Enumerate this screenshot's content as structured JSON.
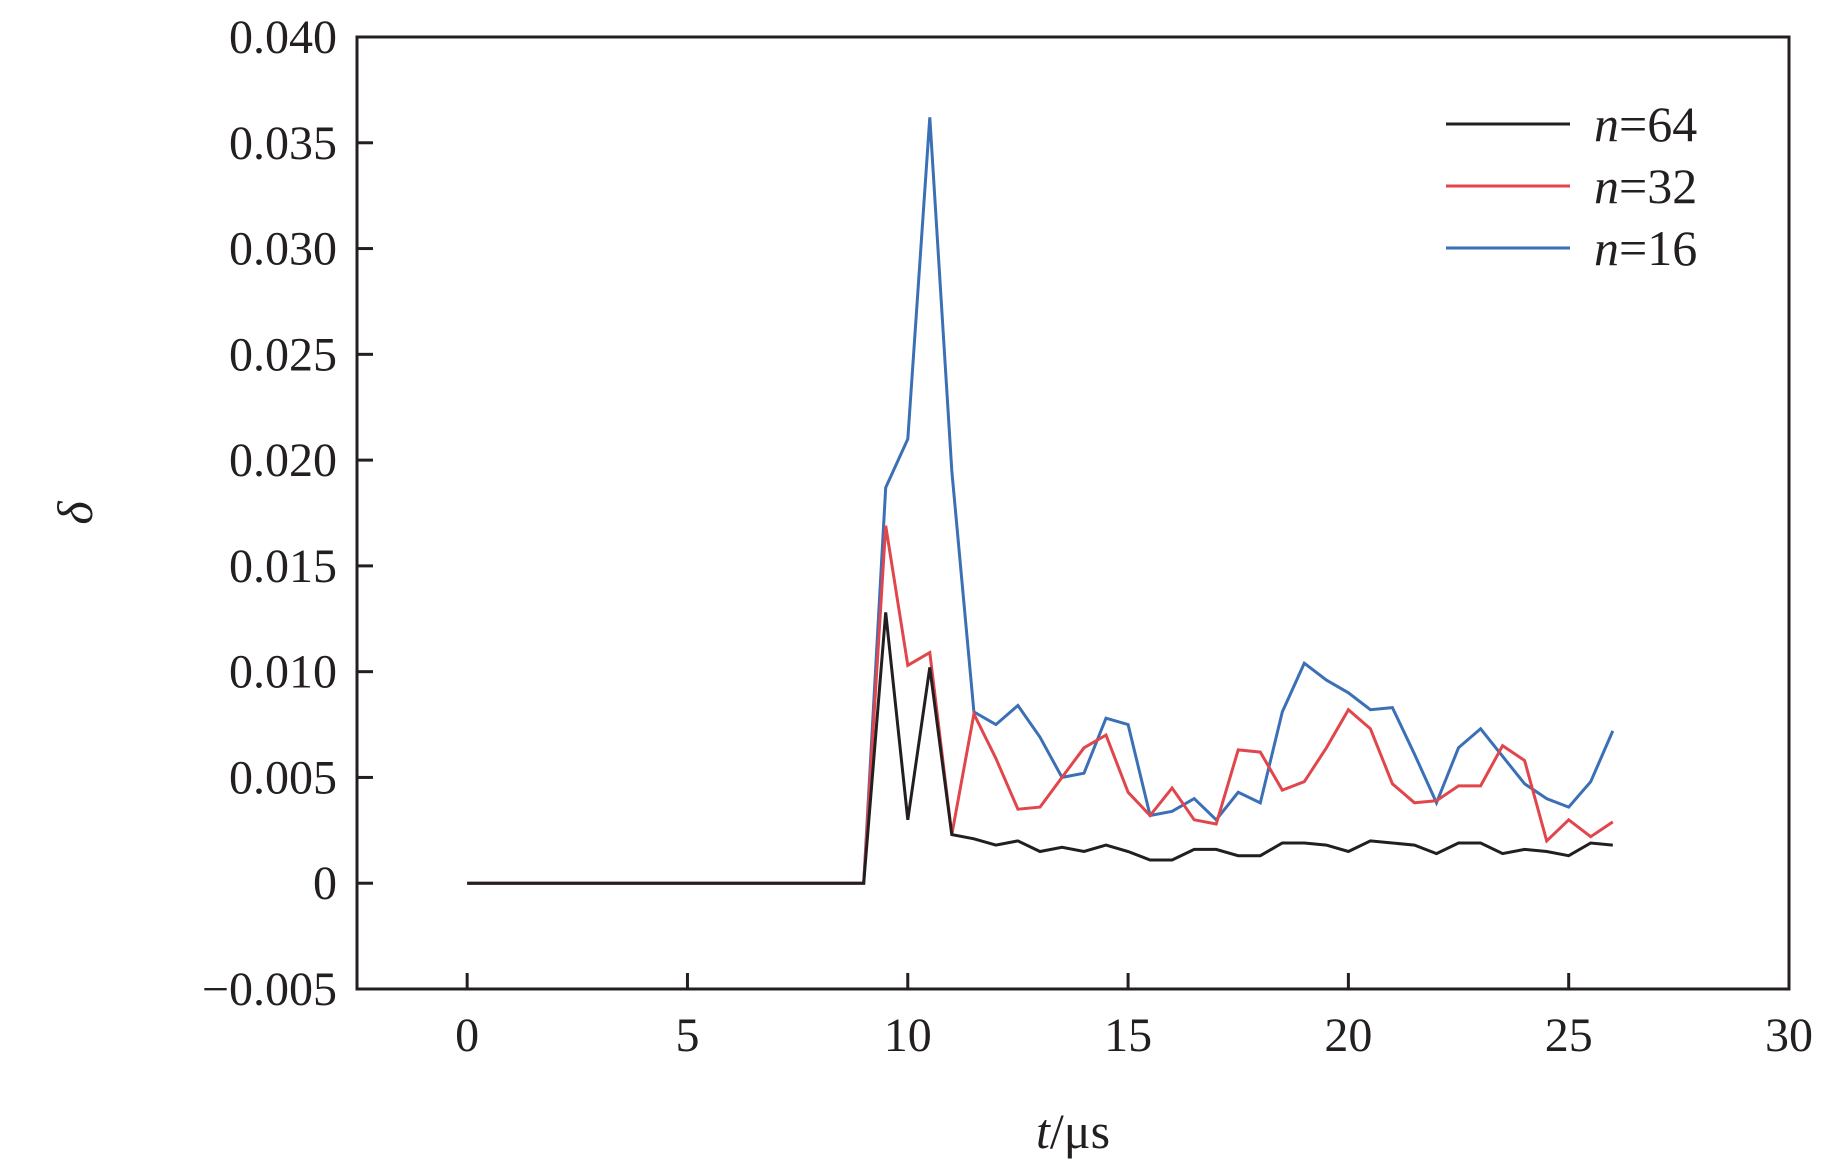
{
  "chart_data": {
    "type": "line",
    "xlabel_var": "t",
    "xlabel_unit": "/μs",
    "ylabel": "δ",
    "xlim": [
      -2.5,
      30
    ],
    "ylim": [
      -0.005,
      0.04
    ],
    "xticks": [
      0,
      5,
      10,
      15,
      20,
      25,
      30
    ],
    "xtick_labels": [
      "0",
      "5",
      "10",
      "15",
      "20",
      "25",
      "30"
    ],
    "yticks": [
      -0.005,
      0,
      0.005,
      0.01,
      0.015,
      0.02,
      0.025,
      0.03,
      0.035,
      0.04
    ],
    "ytick_labels": [
      "−0.005",
      "0",
      "0.005",
      "0.010",
      "0.015",
      "0.020",
      "0.025",
      "0.030",
      "0.035",
      "0.040"
    ],
    "legend_position": "top-right",
    "x": [
      0,
      9,
      9.5,
      10,
      10.5,
      11,
      11.5,
      12,
      12.5,
      13,
      13.5,
      14,
      14.5,
      15,
      15.5,
      16,
      16.5,
      17,
      17.5,
      18,
      18.5,
      19,
      19.5,
      20,
      20.5,
      21,
      21.5,
      22,
      22.5,
      23,
      23.5,
      24,
      24.5,
      25,
      25.5,
      26
    ],
    "series": [
      {
        "name_var": "n",
        "name_value": "=64",
        "color": "#231f20",
        "values": [
          0,
          0,
          0.0128,
          0.003,
          0.0102,
          0.0023,
          0.0021,
          0.0018,
          0.002,
          0.0015,
          0.0017,
          0.0015,
          0.0018,
          0.0015,
          0.0011,
          0.0011,
          0.0016,
          0.0016,
          0.0013,
          0.0013,
          0.0019,
          0.0019,
          0.0018,
          0.0015,
          0.002,
          0.0019,
          0.0018,
          0.0014,
          0.0019,
          0.0019,
          0.0014,
          0.0016,
          0.0015,
          0.0013,
          0.0019,
          0.0018
        ]
      },
      {
        "name_var": "n",
        "name_value": "=32",
        "color": "#e0464b",
        "values": [
          0,
          0,
          0.0169,
          0.0103,
          0.0109,
          0.0023,
          0.008,
          0.0059,
          0.0035,
          0.0036,
          0.005,
          0.0064,
          0.007,
          0.0043,
          0.0032,
          0.0045,
          0.003,
          0.0028,
          0.0063,
          0.0062,
          0.0044,
          0.0048,
          0.0064,
          0.0082,
          0.0073,
          0.0047,
          0.0038,
          0.0039,
          0.0046,
          0.0046,
          0.0065,
          0.0058,
          0.002,
          0.003,
          0.0022,
          0.0029
        ]
      },
      {
        "name_var": "n",
        "name_value": "=16",
        "color": "#3b6fb6",
        "values": [
          0,
          0,
          0.0187,
          0.021,
          0.0362,
          0.0195,
          0.0081,
          0.0075,
          0.0084,
          0.0069,
          0.005,
          0.0052,
          0.0078,
          0.0075,
          0.0032,
          0.0034,
          0.004,
          0.003,
          0.0043,
          0.0038,
          0.0081,
          0.0104,
          0.0096,
          0.009,
          0.0082,
          0.0083,
          0.0061,
          0.0038,
          0.0064,
          0.0073,
          0.006,
          0.0047,
          0.004,
          0.0036,
          0.0048,
          0.0072
        ]
      }
    ]
  }
}
